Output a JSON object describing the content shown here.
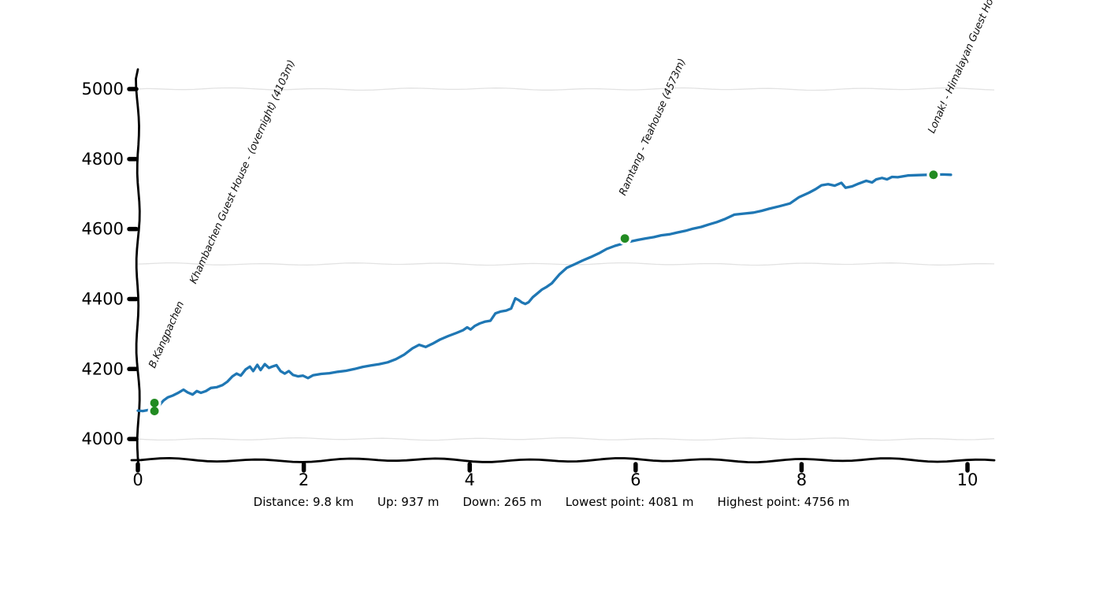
{
  "chart_data": {
    "type": "line",
    "title": "",
    "xlabel": "",
    "ylabel": "",
    "x_unit": "km",
    "y_unit": "m",
    "xlim": [
      0,
      10.3
    ],
    "ylim": [
      3920,
      5060
    ],
    "x_ticks": [
      0,
      2,
      4,
      6,
      8,
      10
    ],
    "y_ticks": [
      4000,
      4200,
      4400,
      4600,
      4800,
      5000
    ],
    "gridlines_m": [
      4000,
      4500,
      5000
    ],
    "grid": true,
    "legend": false,
    "style": "hand-drawn-xkcd",
    "series": [
      {
        "name": "elevation-profile",
        "color": "#1f77b4",
        "points": [
          [
            0.0,
            4081
          ],
          [
            0.06,
            4080
          ],
          [
            0.13,
            4083
          ],
          [
            0.19,
            4085
          ],
          [
            0.25,
            4094
          ],
          [
            0.31,
            4110
          ],
          [
            0.36,
            4119
          ],
          [
            0.42,
            4124
          ],
          [
            0.48,
            4131
          ],
          [
            0.55,
            4141
          ],
          [
            0.6,
            4133
          ],
          [
            0.66,
            4127
          ],
          [
            0.71,
            4137
          ],
          [
            0.76,
            4132
          ],
          [
            0.82,
            4137
          ],
          [
            0.88,
            4146
          ],
          [
            0.95,
            4148
          ],
          [
            1.02,
            4154
          ],
          [
            1.08,
            4164
          ],
          [
            1.14,
            4179
          ],
          [
            1.19,
            4187
          ],
          [
            1.24,
            4181
          ],
          [
            1.3,
            4199
          ],
          [
            1.35,
            4207
          ],
          [
            1.39,
            4194
          ],
          [
            1.44,
            4212
          ],
          [
            1.48,
            4197
          ],
          [
            1.53,
            4214
          ],
          [
            1.58,
            4203
          ],
          [
            1.62,
            4207
          ],
          [
            1.67,
            4211
          ],
          [
            1.72,
            4194
          ],
          [
            1.77,
            4187
          ],
          [
            1.82,
            4194
          ],
          [
            1.87,
            4183
          ],
          [
            1.93,
            4179
          ],
          [
            1.99,
            4181
          ],
          [
            2.05,
            4174
          ],
          [
            2.11,
            4182
          ],
          [
            2.21,
            4186
          ],
          [
            2.31,
            4188
          ],
          [
            2.41,
            4192
          ],
          [
            2.51,
            4195
          ],
          [
            2.61,
            4200
          ],
          [
            2.71,
            4206
          ],
          [
            2.81,
            4210
          ],
          [
            2.91,
            4214
          ],
          [
            3.01,
            4219
          ],
          [
            3.11,
            4228
          ],
          [
            3.21,
            4241
          ],
          [
            3.31,
            4259
          ],
          [
            3.39,
            4269
          ],
          [
            3.47,
            4263
          ],
          [
            3.55,
            4272
          ],
          [
            3.64,
            4284
          ],
          [
            3.74,
            4294
          ],
          [
            3.84,
            4303
          ],
          [
            3.92,
            4311
          ],
          [
            3.97,
            4319
          ],
          [
            4.01,
            4313
          ],
          [
            4.06,
            4323
          ],
          [
            4.12,
            4330
          ],
          [
            4.18,
            4335
          ],
          [
            4.25,
            4338
          ],
          [
            4.31,
            4359
          ],
          [
            4.37,
            4364
          ],
          [
            4.44,
            4367
          ],
          [
            4.5,
            4373
          ],
          [
            4.55,
            4402
          ],
          [
            4.59,
            4397
          ],
          [
            4.63,
            4390
          ],
          [
            4.67,
            4386
          ],
          [
            4.71,
            4391
          ],
          [
            4.76,
            4405
          ],
          [
            4.81,
            4415
          ],
          [
            4.87,
            4427
          ],
          [
            4.93,
            4435
          ],
          [
            4.99,
            4445
          ],
          [
            5.08,
            4470
          ],
          [
            5.17,
            4489
          ],
          [
            5.27,
            4500
          ],
          [
            5.36,
            4510
          ],
          [
            5.46,
            4520
          ],
          [
            5.56,
            4531
          ],
          [
            5.65,
            4543
          ],
          [
            5.75,
            4552
          ],
          [
            5.84,
            4558
          ],
          [
            5.93,
            4564
          ],
          [
            6.03,
            4569
          ],
          [
            6.12,
            4573
          ],
          [
            6.22,
            4577
          ],
          [
            6.31,
            4582
          ],
          [
            6.41,
            4585
          ],
          [
            6.5,
            4590
          ],
          [
            6.6,
            4595
          ],
          [
            6.69,
            4601
          ],
          [
            6.79,
            4606
          ],
          [
            6.88,
            4613
          ],
          [
            6.98,
            4620
          ],
          [
            7.07,
            4628
          ],
          [
            7.19,
            4641
          ],
          [
            7.3,
            4644
          ],
          [
            7.42,
            4647
          ],
          [
            7.52,
            4652
          ],
          [
            7.61,
            4658
          ],
          [
            7.73,
            4665
          ],
          [
            7.86,
            4673
          ],
          [
            7.97,
            4691
          ],
          [
            8.09,
            4704
          ],
          [
            8.17,
            4714
          ],
          [
            8.24,
            4725
          ],
          [
            8.32,
            4728
          ],
          [
            8.4,
            4724
          ],
          [
            8.48,
            4732
          ],
          [
            8.53,
            4718
          ],
          [
            8.61,
            4722
          ],
          [
            8.69,
            4730
          ],
          [
            8.78,
            4738
          ],
          [
            8.85,
            4733
          ],
          [
            8.9,
            4742
          ],
          [
            8.97,
            4746
          ],
          [
            9.03,
            4742
          ],
          [
            9.09,
            4749
          ],
          [
            9.16,
            4748
          ],
          [
            9.28,
            4753
          ],
          [
            9.41,
            4754
          ],
          [
            9.53,
            4755
          ],
          [
            9.61,
            4755
          ],
          [
            9.7,
            4756
          ],
          [
            9.8,
            4755
          ]
        ]
      }
    ],
    "waypoints": [
      {
        "label": "B.Kangpachen",
        "km": 0.2,
        "elevation_m": 4080
      },
      {
        "label": "Khambachen Guest House - (overnight) (4103m)",
        "km": 0.2,
        "elevation_m": 4103
      },
      {
        "label": "Ramtang - Teahouse (4573m)",
        "km": 5.87,
        "elevation_m": 4573
      },
      {
        "label": "Lonak! - Himalayan Guest House",
        "km": 9.59,
        "elevation_m": 4755
      }
    ],
    "summary": {
      "distance_km": 9.8,
      "up_m": 937,
      "down_m": 265,
      "lowest_point_m": 4081,
      "highest_point_m": 4756
    }
  },
  "stats_bar": {
    "items": [
      "Distance: 9.8 km",
      "Up: 937 m",
      "Down: 265 m",
      "Lowest point: 4081 m",
      "Highest point: 4756 m"
    ]
  },
  "colors": {
    "line": "#1f77b4",
    "waypoint_dot": "#228b22",
    "axis": "#000000",
    "grid": "#e2e2e2",
    "text": "#000000"
  }
}
